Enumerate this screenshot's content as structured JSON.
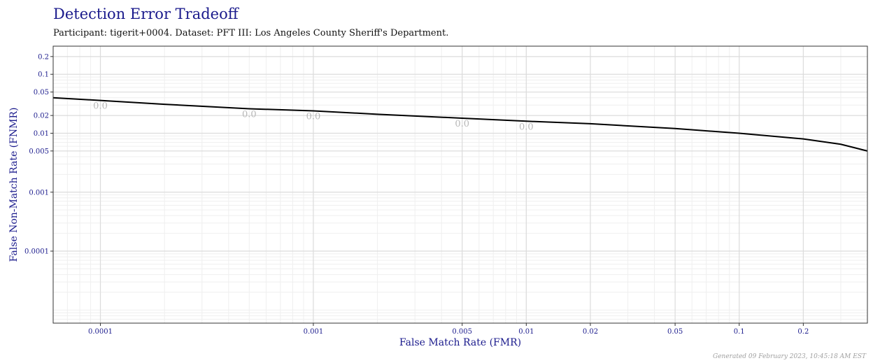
{
  "title": "Detection Error Tradeoff",
  "subtitle": "Participant: tigerit+0004. Dataset: PFT III: Los Angeles County Sheriff's Department.",
  "footer": "Generated 09 February 2023, 10:45:18 AM EST",
  "colors": {
    "title": "#1a1a8c",
    "curve": "#000000",
    "grid_major": "#dcdcdc",
    "grid_minor": "#efefef",
    "annotation": "#b8b8b8"
  },
  "chart_data": {
    "type": "line",
    "title": "Detection Error Tradeoff",
    "subtitle": "Participant: tigerit+0004. Dataset: PFT III: Los Angeles County Sheriff's Department.",
    "xlabel": "False Match Rate (FMR)",
    "ylabel": "False Non-Match Rate (FNMR)",
    "x_scale": "log",
    "y_scale": "log",
    "xlim": [
      6e-05,
      0.4
    ],
    "ylim": [
      6e-06,
      0.3
    ],
    "grid": true,
    "x_ticks": [
      {
        "value": 0.0001,
        "label": "0.0001"
      },
      {
        "value": 0.001,
        "label": "0.001"
      },
      {
        "value": 0.005,
        "label": "0.005"
      },
      {
        "value": 0.01,
        "label": "0.01"
      },
      {
        "value": 0.02,
        "label": "0.02"
      },
      {
        "value": 0.05,
        "label": "0.05"
      },
      {
        "value": 0.1,
        "label": "0.1"
      },
      {
        "value": 0.2,
        "label": "0.2"
      }
    ],
    "y_ticks": [
      {
        "value": 0.2,
        "label": "0.2"
      },
      {
        "value": 0.1,
        "label": "0.1"
      },
      {
        "value": 0.05,
        "label": "0.05"
      },
      {
        "value": 0.02,
        "label": "0.02"
      },
      {
        "value": 0.01,
        "label": "0.01"
      },
      {
        "value": 0.005,
        "label": "0.005"
      },
      {
        "value": 0.001,
        "label": "0.001"
      },
      {
        "value": 0.0001,
        "label": "0.0001"
      }
    ],
    "series": [
      {
        "x": [
          6e-05,
          0.0001,
          0.0002,
          0.0005,
          0.001,
          0.002,
          0.005,
          0.01,
          0.02,
          0.05,
          0.1,
          0.2,
          0.3,
          0.4
        ],
        "y": [
          0.04,
          0.036,
          0.031,
          0.026,
          0.024,
          0.021,
          0.018,
          0.016,
          0.0145,
          0.012,
          0.01,
          0.008,
          0.0065,
          0.005
        ]
      }
    ],
    "annotations": [
      {
        "x": 0.0001,
        "y": 0.036,
        "text": "0.0"
      },
      {
        "x": 0.0005,
        "y": 0.026,
        "text": "0.0"
      },
      {
        "x": 0.001,
        "y": 0.024,
        "text": "0.0"
      },
      {
        "x": 0.005,
        "y": 0.018,
        "text": "0.0"
      },
      {
        "x": 0.01,
        "y": 0.016,
        "text": "0.0"
      }
    ]
  }
}
